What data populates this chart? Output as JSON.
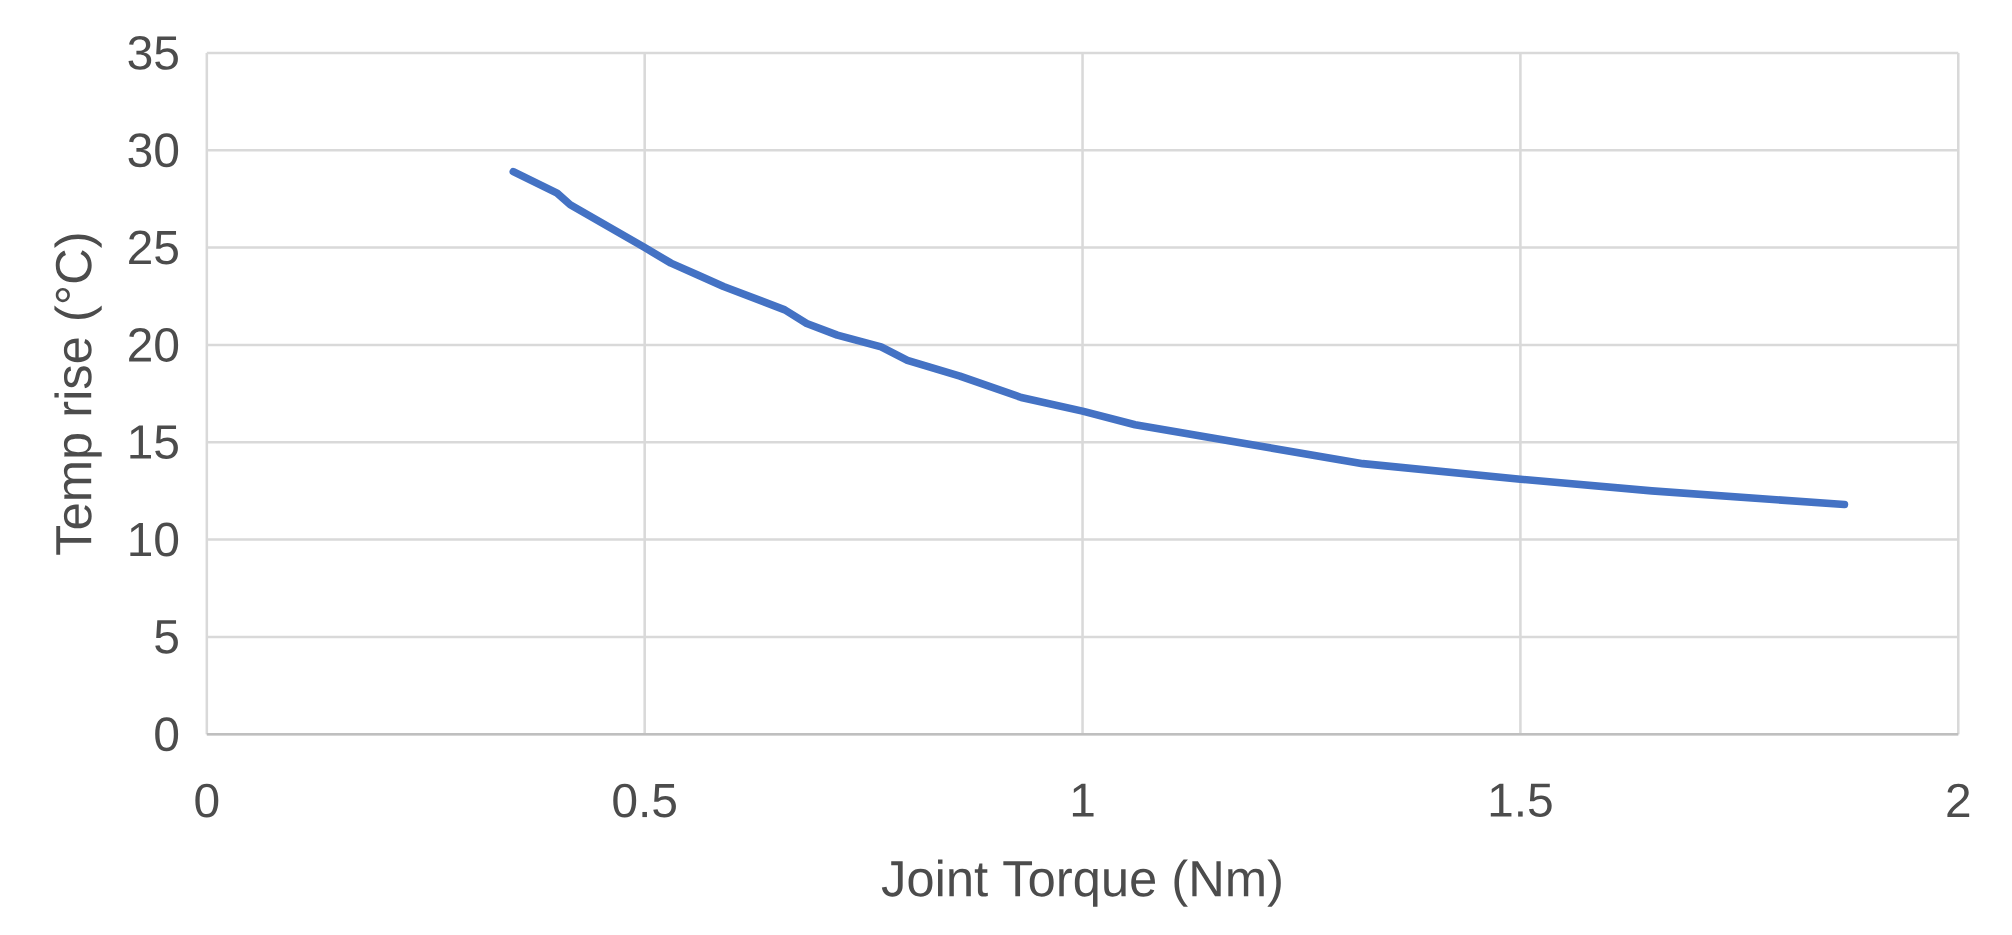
{
  "chart_data": {
    "type": "line",
    "xlabel": "Joint Torque (Nm)",
    "ylabel": "Temp rise (°C)",
    "series": [
      {
        "color": "#4472c4",
        "x": [
          0.35,
          0.4,
          0.415,
          0.5,
          0.53,
          0.56,
          0.59,
          0.66,
          0.685,
          0.72,
          0.77,
          0.8,
          0.86,
          0.93,
          1.0,
          1.06,
          1.15,
          1.32,
          1.5,
          1.65,
          1.87
        ],
        "values": [
          28.9,
          27.8,
          27.2,
          25.0,
          24.2,
          23.6,
          23.0,
          21.8,
          21.1,
          20.5,
          19.9,
          19.2,
          18.4,
          17.3,
          16.6,
          15.9,
          15.2,
          13.9,
          13.1,
          12.5,
          11.8
        ]
      }
    ],
    "xlim": [
      0,
      2
    ],
    "ylim": [
      0,
      35
    ],
    "xticks": [
      0,
      0.5,
      1,
      1.5,
      2
    ],
    "yticks": [
      0,
      5,
      10,
      15,
      20,
      25,
      30,
      35
    ],
    "grid": true,
    "marker": "none",
    "line_style": "solid"
  }
}
